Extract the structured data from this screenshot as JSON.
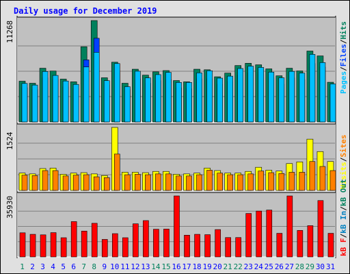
{
  "title": "Daily usage for December 2019",
  "colors": {
    "hits": "#00805c",
    "files": "#0040ff",
    "pages": "#00c0ff",
    "visits": "#ffff00",
    "sites": "#ff8000",
    "kb_in": "#0080c0",
    "kb_out": "#00805c",
    "kbytes": "#ff0000",
    "weekend": "#00805c",
    "weekday": "#0000ff"
  },
  "chart_data": [
    {
      "type": "bar",
      "panel": "hits-files-pages",
      "ymax_label": "11268",
      "ylim": [
        0,
        11268
      ],
      "categories": [
        "1",
        "2",
        "3",
        "4",
        "5",
        "6",
        "7",
        "8",
        "9",
        "10",
        "11",
        "12",
        "13",
        "14",
        "15",
        "16",
        "17",
        "18",
        "19",
        "20",
        "21",
        "22",
        "23",
        "24",
        "25",
        "26",
        "27",
        "28",
        "29",
        "30",
        "31"
      ],
      "weekend_days": [
        1,
        7,
        8,
        14,
        15,
        21,
        22,
        28,
        29
      ],
      "series": [
        {
          "name": "Hits",
          "color_key": "hits",
          "values": [
            4530,
            4300,
            5970,
            5660,
            4760,
            4460,
            8360,
            11268,
            4910,
            6640,
            4300,
            5860,
            5200,
            5570,
            5710,
            4600,
            4460,
            5860,
            5800,
            5020,
            5430,
            6270,
            6520,
            6350,
            5900,
            5130,
            5970,
            5670,
            7880,
            7340,
            4410
          ]
        },
        {
          "name": "Files",
          "color_key": "files",
          "values": [
            3800,
            3600,
            4900,
            4700,
            3900,
            3700,
            6900,
            9300,
            4100,
            5500,
            3600,
            4800,
            4300,
            4600,
            4700,
            3800,
            3700,
            4800,
            4800,
            4200,
            4500,
            5200,
            5400,
            5300,
            4900,
            4200,
            4900,
            4700,
            6500,
            6100,
            3600
          ]
        },
        {
          "name": "Pages",
          "color_key": "pages",
          "values": [
            4280,
            4100,
            5610,
            5170,
            4550,
            4170,
            6110,
            7740,
            4590,
            6490,
            3920,
            5640,
            4900,
            5260,
            5510,
            4390,
            4390,
            5460,
            5690,
            4870,
            5090,
            5940,
            6200,
            6060,
            5540,
            4910,
            5620,
            5430,
            7510,
            6600,
            4220
          ]
        }
      ],
      "legend": [
        "Pages",
        "Files",
        "Hits"
      ]
    },
    {
      "type": "bar",
      "panel": "visits-sites",
      "ymax_label": "1524",
      "ylim": [
        0,
        1524
      ],
      "categories": [
        "1",
        "2",
        "3",
        "4",
        "5",
        "6",
        "7",
        "8",
        "9",
        "10",
        "11",
        "12",
        "13",
        "14",
        "15",
        "16",
        "17",
        "18",
        "19",
        "20",
        "21",
        "22",
        "23",
        "24",
        "25",
        "26",
        "27",
        "28",
        "29",
        "30",
        "31"
      ],
      "series": [
        {
          "name": "Visits",
          "color_key": "visits",
          "values": [
            420,
            400,
            530,
            540,
            390,
            420,
            430,
            400,
            360,
            1524,
            440,
            440,
            430,
            460,
            460,
            390,
            400,
            420,
            540,
            480,
            420,
            420,
            460,
            560,
            490,
            470,
            650,
            690,
            1240,
            940,
            700
          ]
        },
        {
          "name": "Sites",
          "color_key": "sites",
          "values": [
            370,
            360,
            480,
            480,
            350,
            370,
            380,
            330,
            310,
            880,
            380,
            390,
            380,
            400,
            400,
            350,
            350,
            380,
            490,
            420,
            380,
            380,
            400,
            470,
            430,
            410,
            440,
            440,
            700,
            580,
            480
          ]
        }
      ],
      "legend": [
        "Visits",
        "Sites"
      ]
    },
    {
      "type": "bar",
      "panel": "kbytes",
      "ymax_label": "35930",
      "ylim": [
        0,
        35930
      ],
      "categories": [
        "1",
        "2",
        "3",
        "4",
        "5",
        "6",
        "7",
        "8",
        "9",
        "10",
        "11",
        "12",
        "13",
        "14",
        "15",
        "16",
        "17",
        "18",
        "19",
        "20",
        "21",
        "22",
        "23",
        "24",
        "25",
        "26",
        "27",
        "28",
        "29",
        "30",
        "31"
      ],
      "series": [
        {
          "name": "kB F",
          "color_key": "kbytes",
          "values": [
            14200,
            13300,
            13000,
            14300,
            11300,
            20800,
            15200,
            19800,
            10300,
            13700,
            11300,
            19500,
            21400,
            16300,
            16400,
            35930,
            12800,
            13300,
            13100,
            16100,
            11400,
            11400,
            25600,
            27000,
            27600,
            13900,
            35930,
            15600,
            18400,
            33200,
            13900
          ]
        },
        {
          "name": "kB In",
          "color_key": "kb_in",
          "values": [
            0,
            0,
            0,
            0,
            0,
            0,
            0,
            0,
            0,
            0,
            0,
            0,
            0,
            0,
            0,
            0,
            0,
            0,
            0,
            0,
            0,
            0,
            0,
            0,
            0,
            0,
            0,
            0,
            0,
            0,
            0
          ]
        },
        {
          "name": "kB Out",
          "color_key": "kb_out",
          "values": [
            0,
            0,
            0,
            0,
            0,
            0,
            0,
            0,
            0,
            0,
            0,
            0,
            0,
            0,
            0,
            0,
            0,
            0,
            0,
            0,
            0,
            0,
            0,
            0,
            0,
            0,
            0,
            0,
            0,
            0,
            0
          ]
        }
      ],
      "legend": [
        "kB F",
        "kB In",
        "kB Out"
      ]
    }
  ]
}
